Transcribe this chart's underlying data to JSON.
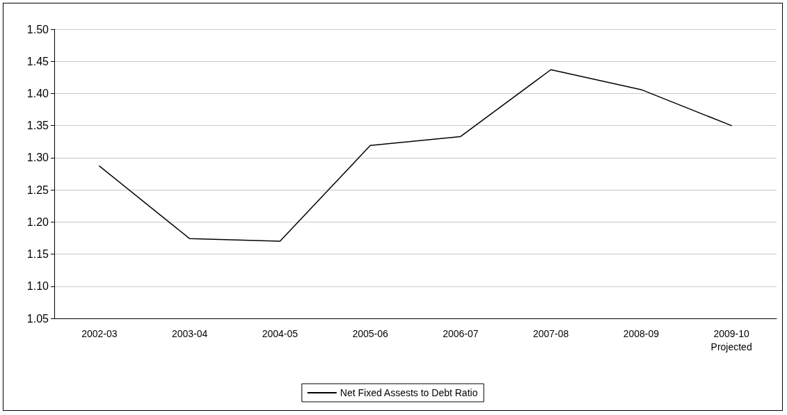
{
  "chart_data": {
    "type": "line",
    "categories": [
      "2002-03",
      "2003-04",
      "2004-05",
      "2005-06",
      "2006-07",
      "2007-08",
      "2008-09",
      "2009-10\nProjected"
    ],
    "series": [
      {
        "name": "Net Fixed Assests to Debt Ratio",
        "color": "#000000",
        "values": [
          1.287,
          1.174,
          1.17,
          1.319,
          1.333,
          1.437,
          1.406,
          1.35
        ]
      }
    ],
    "ylim": [
      1.05,
      1.5
    ],
    "yticks": [
      {
        "value": 1.05,
        "label": "1.05"
      },
      {
        "value": 1.1,
        "label": "1.10"
      },
      {
        "value": 1.15,
        "label": "1.15"
      },
      {
        "value": 1.2,
        "label": "1.20"
      },
      {
        "value": 1.25,
        "label": "1.25"
      },
      {
        "value": 1.3,
        "label": "1.30"
      },
      {
        "value": 1.35,
        "label": "1.35"
      },
      {
        "value": 1.4,
        "label": "1.40"
      },
      {
        "value": 1.45,
        "label": "1.45"
      },
      {
        "value": 1.5,
        "label": "1.50"
      }
    ],
    "grid": "y",
    "legend": "bottom",
    "marker": "none",
    "line_style": "solid"
  }
}
